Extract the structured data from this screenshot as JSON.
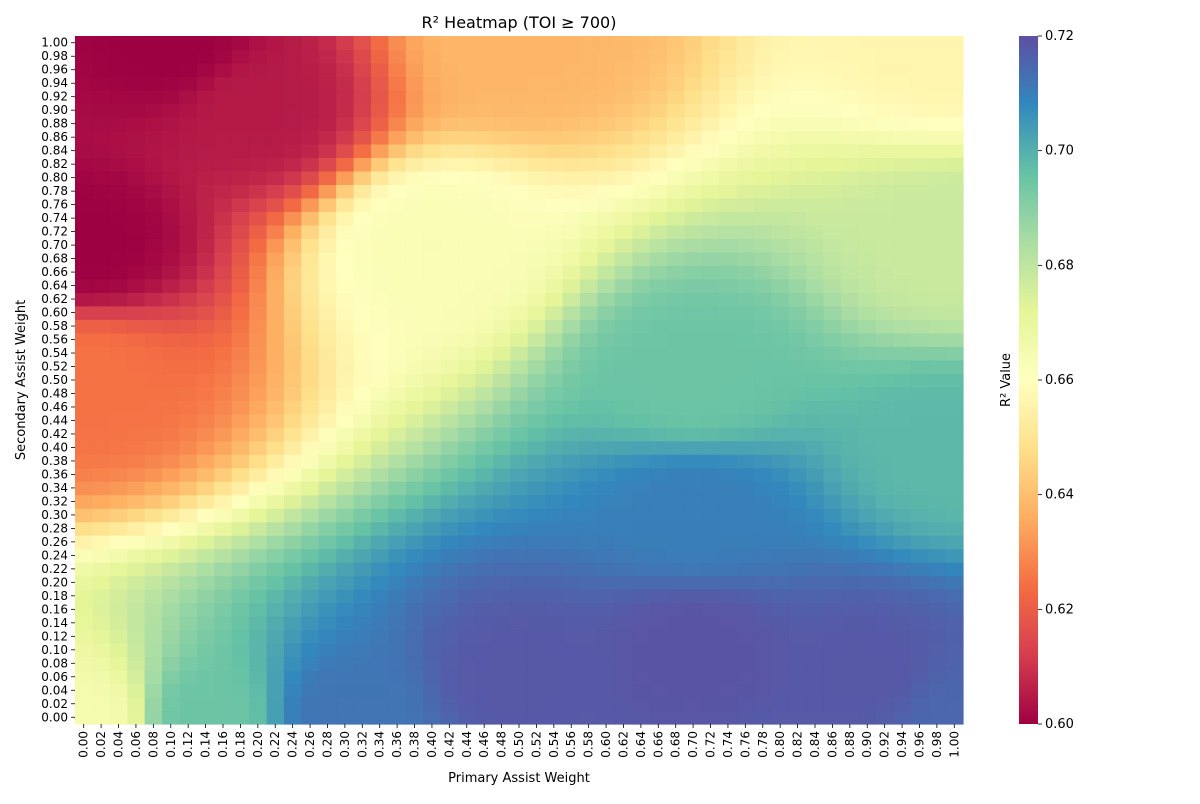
{
  "chart_data": {
    "type": "heatmap",
    "title": "R² Heatmap (TOI ≥ 700)",
    "xlabel": "Primary Assist Weight",
    "ylabel": "Secondary Assist Weight",
    "x_range": [
      0.0,
      1.0
    ],
    "y_range": [
      0.0,
      1.0
    ],
    "x_step": 0.02,
    "y_step": 0.02,
    "x_ticks": [
      "0.00",
      "0.02",
      "0.04",
      "0.06",
      "0.08",
      "0.10",
      "0.12",
      "0.14",
      "0.16",
      "0.18",
      "0.20",
      "0.22",
      "0.24",
      "0.26",
      "0.28",
      "0.30",
      "0.32",
      "0.34",
      "0.36",
      "0.38",
      "0.40",
      "0.42",
      "0.44",
      "0.46",
      "0.48",
      "0.50",
      "0.52",
      "0.54",
      "0.56",
      "0.58",
      "0.60",
      "0.62",
      "0.64",
      "0.66",
      "0.68",
      "0.70",
      "0.72",
      "0.74",
      "0.76",
      "0.78",
      "0.80",
      "0.82",
      "0.84",
      "0.86",
      "0.88",
      "0.90",
      "0.92",
      "0.94",
      "0.96",
      "0.98",
      "1.00"
    ],
    "y_ticks": [
      "0.00",
      "0.02",
      "0.04",
      "0.06",
      "0.08",
      "0.10",
      "0.12",
      "0.14",
      "0.16",
      "0.18",
      "0.20",
      "0.22",
      "0.24",
      "0.26",
      "0.28",
      "0.30",
      "0.32",
      "0.34",
      "0.36",
      "0.38",
      "0.40",
      "0.42",
      "0.44",
      "0.46",
      "0.48",
      "0.50",
      "0.52",
      "0.54",
      "0.56",
      "0.58",
      "0.60",
      "0.62",
      "0.64",
      "0.66",
      "0.68",
      "0.70",
      "0.72",
      "0.74",
      "0.76",
      "0.78",
      "0.80",
      "0.82",
      "0.84",
      "0.86",
      "0.88",
      "0.90",
      "0.92",
      "0.94",
      "0.96",
      "0.98",
      "1.00"
    ],
    "colorbar": {
      "label": "R² Value",
      "colormap": "Spectral",
      "vmin": 0.6,
      "vmax": 0.72,
      "ticks": [
        "0.60",
        "0.62",
        "0.64",
        "0.66",
        "0.68",
        "0.70",
        "0.72"
      ]
    },
    "sample_values": [
      {
        "x": 0.0,
        "y": 0.0,
        "value": 0.665
      },
      {
        "x": 0.14,
        "y": 0.0,
        "value": 0.695
      },
      {
        "x": 0.3,
        "y": 0.0,
        "value": 0.712
      },
      {
        "x": 0.5,
        "y": 0.06,
        "value": 0.718
      },
      {
        "x": 0.7,
        "y": 0.1,
        "value": 0.719
      },
      {
        "x": 0.9,
        "y": 0.06,
        "value": 0.718
      },
      {
        "x": 1.0,
        "y": 0.0,
        "value": 0.715
      },
      {
        "x": 0.7,
        "y": 0.3,
        "value": 0.71
      },
      {
        "x": 0.7,
        "y": 0.5,
        "value": 0.695
      },
      {
        "x": 0.0,
        "y": 0.5,
        "value": 0.625
      },
      {
        "x": 0.0,
        "y": 0.7,
        "value": 0.6
      },
      {
        "x": 0.1,
        "y": 1.0,
        "value": 0.6
      },
      {
        "x": 0.5,
        "y": 1.0,
        "value": 0.638
      },
      {
        "x": 1.0,
        "y": 1.0,
        "value": 0.656
      },
      {
        "x": 1.0,
        "y": 0.7,
        "value": 0.678
      },
      {
        "x": 0.4,
        "y": 0.7,
        "value": 0.663
      },
      {
        "x": 0.2,
        "y": 0.9,
        "value": 0.605
      },
      {
        "x": 1.0,
        "y": 0.4,
        "value": 0.698
      }
    ],
    "colors": {
      "min": "#9e0142",
      "mid": "#ffffbf",
      "max": "#5e4fa2"
    }
  }
}
